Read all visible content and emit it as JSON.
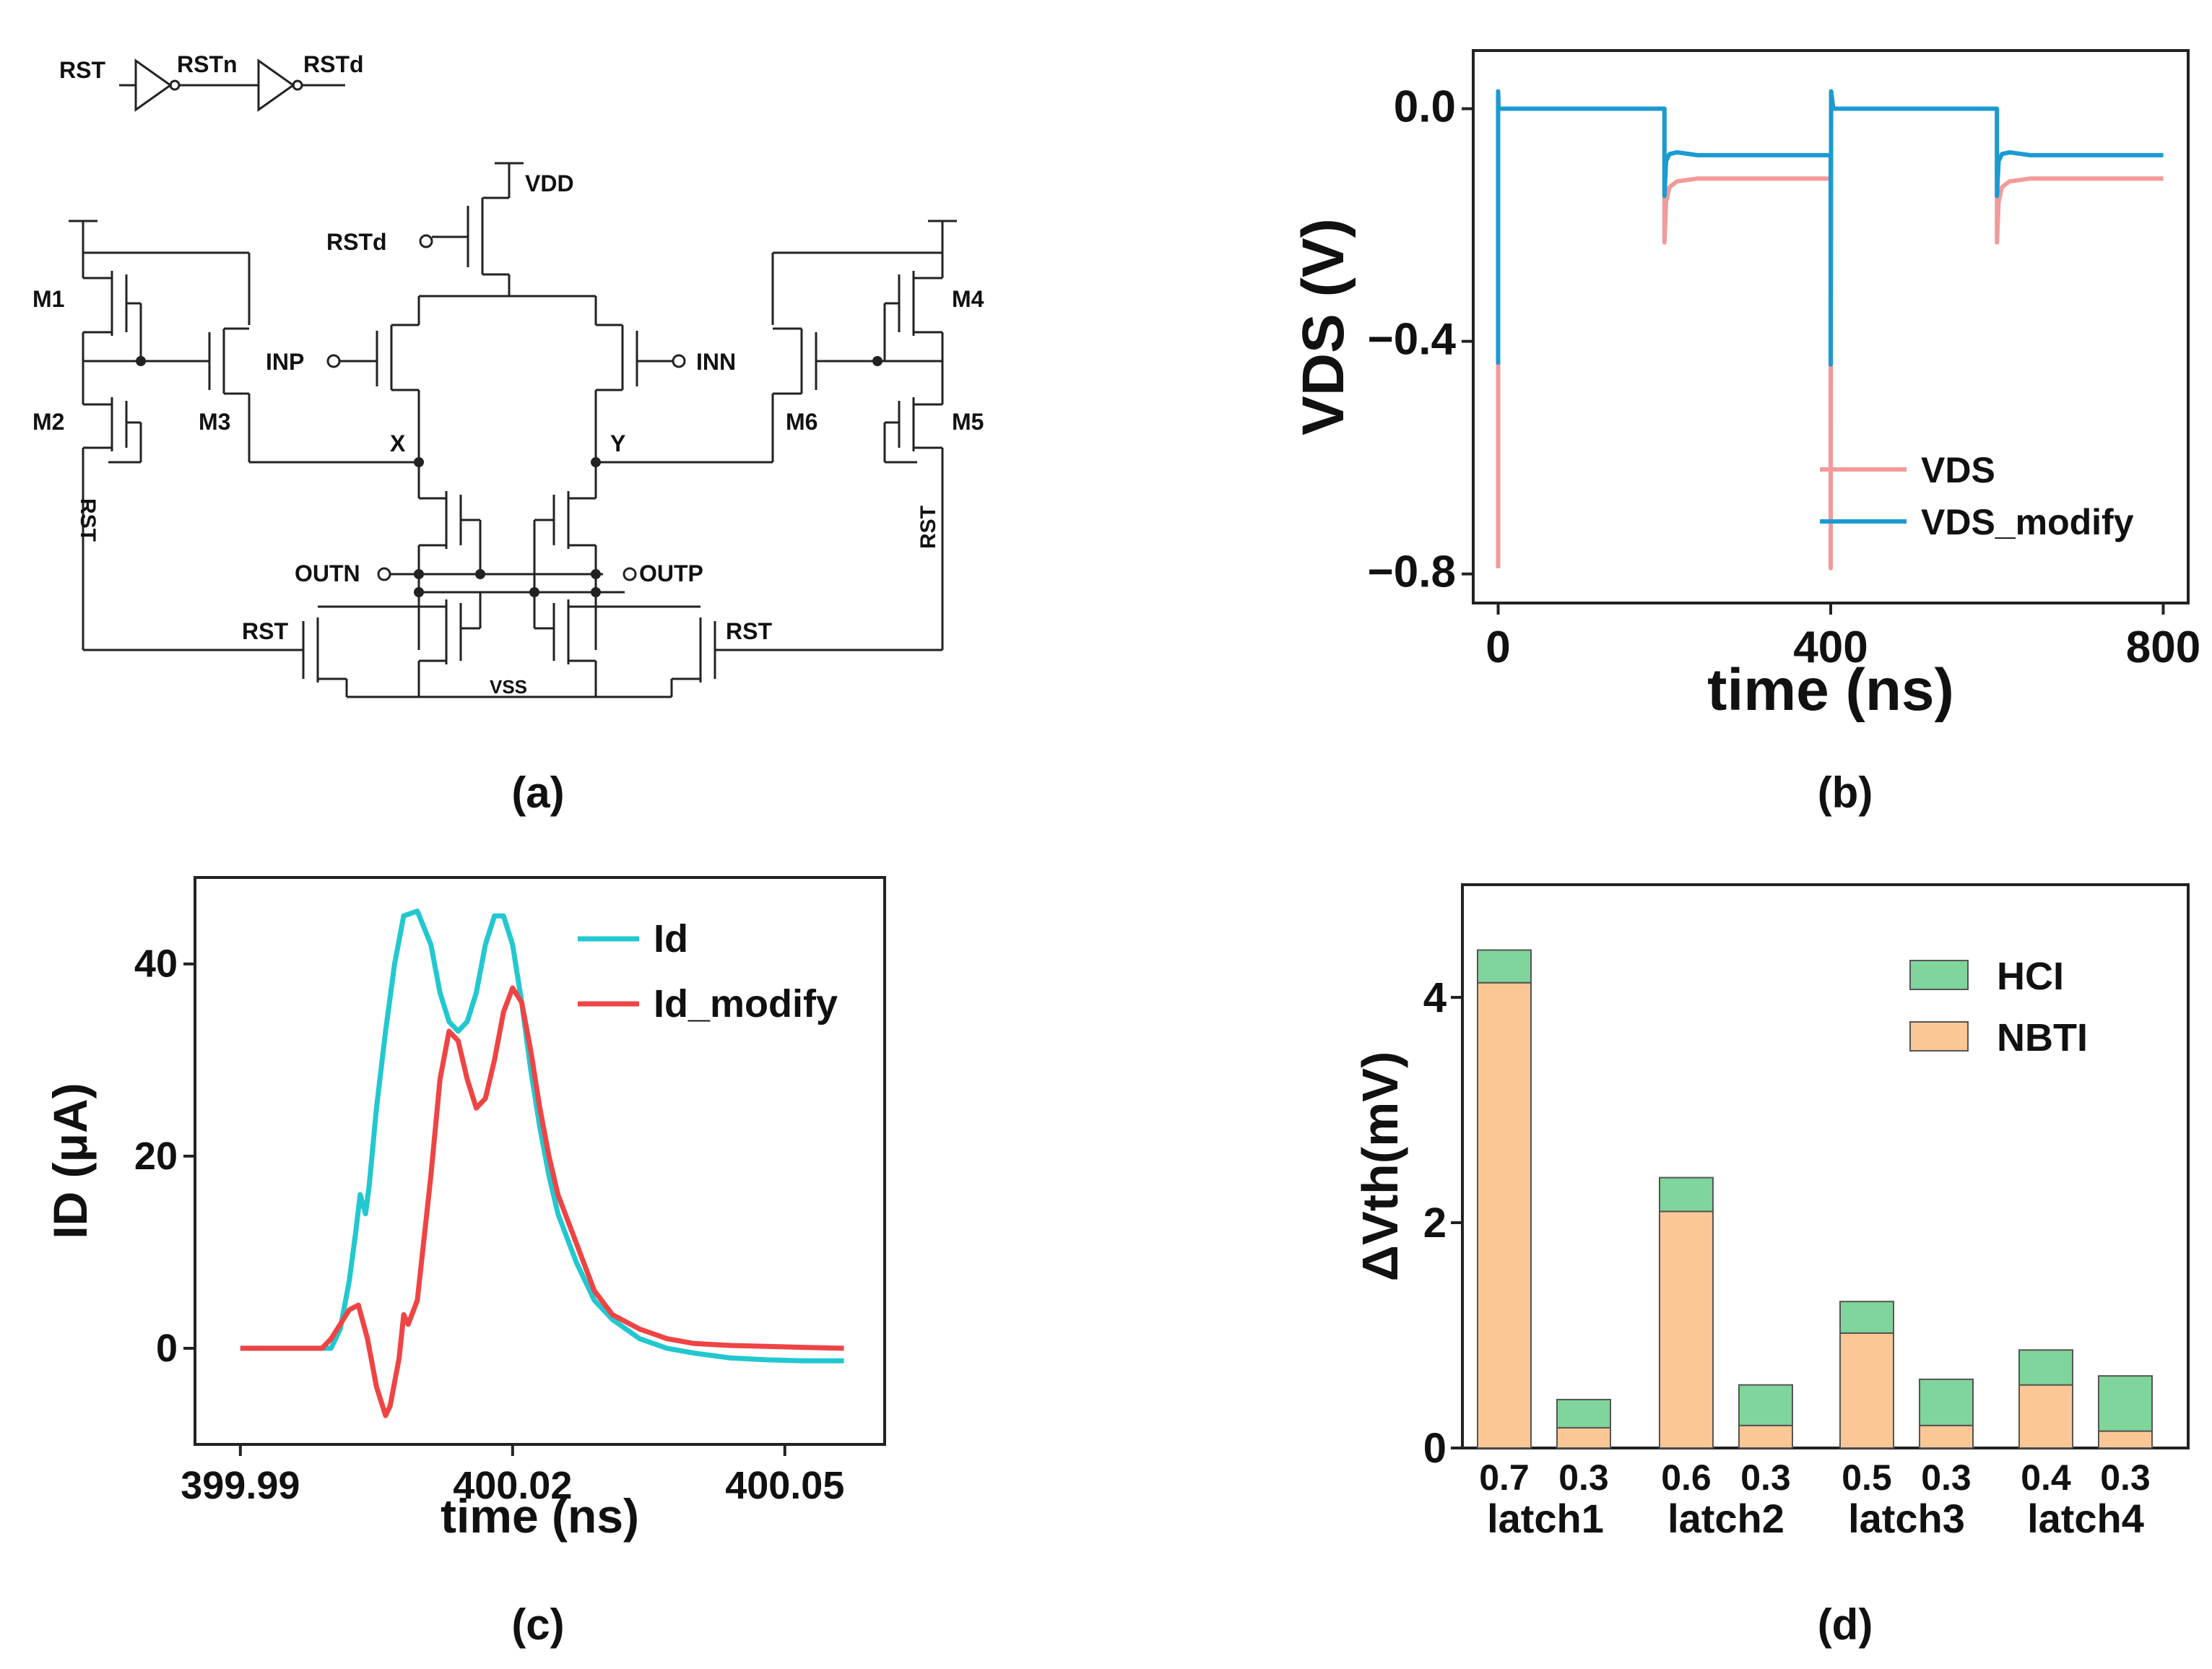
{
  "figure": {
    "panel_labels": [
      "(a)",
      "(b)",
      "(c)",
      "(d)"
    ]
  },
  "schematic": {
    "inverter_chain": [
      "RST",
      "RSTn",
      "RSTd"
    ],
    "labels": {
      "vdd": "VDD",
      "rstd": "RSTd",
      "inp": "INP",
      "inn": "INN",
      "x": "X",
      "y": "Y",
      "outn": "OUTN",
      "outp": "OUTP",
      "vss": "VSS",
      "rst_left_h": "RST",
      "rst_right_h": "RST",
      "rst_left_v": "RST",
      "rst_right_v": "RST",
      "m1": "M1",
      "m2": "M2",
      "m3": "M3",
      "m4": "M4",
      "m5": "M5",
      "m6": "M6"
    }
  },
  "chart_data": [
    {
      "type": "line",
      "title": "",
      "xlabel": "time (ns)",
      "ylabel": "VDS (V)",
      "xlim": [
        -30,
        830
      ],
      "ylim": [
        -0.85,
        0.1
      ],
      "xticks": [
        0,
        400,
        800
      ],
      "xtick_labels": [
        "0",
        "400",
        "800"
      ],
      "yticks": [
        0.0,
        -0.4,
        -0.8
      ],
      "ytick_labels": [
        "0.0",
        "−0.4",
        "−0.8"
      ],
      "legend_position": "lower-right",
      "series": [
        {
          "name": "VDS",
          "color": "#f39a9a",
          "x": [
            0,
            0,
            0.5,
            3,
            199,
            200,
            200,
            202,
            206,
            215,
            240,
            399,
            400,
            400,
            400.5,
            403,
            599,
            600,
            600,
            602,
            606,
            615,
            640,
            800
          ],
          "y": [
            -0.79,
            0.03,
            0.0,
            0.0,
            0.0,
            0.0,
            -0.23,
            -0.16,
            -0.135,
            -0.125,
            -0.12,
            -0.12,
            -0.12,
            -0.79,
            0.03,
            0.0,
            0.0,
            0.0,
            -0.23,
            -0.16,
            -0.135,
            -0.125,
            -0.12,
            -0.12
          ]
        },
        {
          "name": "VDS_modify",
          "color": "#1b9ad2",
          "x": [
            0,
            0,
            0.5,
            3,
            199,
            200,
            200,
            202,
            206,
            215,
            240,
            399,
            400,
            400,
            400.5,
            403,
            599,
            600,
            600,
            602,
            606,
            615,
            640,
            800
          ],
          "y": [
            -0.44,
            0.03,
            0.0,
            0.0,
            0.0,
            0.0,
            -0.15,
            -0.09,
            -0.078,
            -0.075,
            -0.08,
            -0.08,
            -0.08,
            -0.44,
            0.03,
            0.0,
            0.0,
            0.0,
            -0.15,
            -0.09,
            -0.078,
            -0.075,
            -0.08,
            -0.08
          ]
        }
      ]
    },
    {
      "type": "line",
      "title": "",
      "xlabel": "time (ns)",
      "ylabel": "ID (μA)",
      "xlim": [
        399.985,
        400.061
      ],
      "ylim": [
        -10,
        49
      ],
      "xticks": [
        399.99,
        400.02,
        400.05
      ],
      "xtick_labels": [
        "399.99",
        "400.02",
        "400.05"
      ],
      "yticks": [
        0,
        20,
        40
      ],
      "ytick_labels": [
        "0",
        "20",
        "40"
      ],
      "legend_position": "top-right",
      "series": [
        {
          "name": "Id",
          "color": "#22c8cf",
          "x": [
            399.99,
            400.0,
            400.001,
            400.002,
            400.0027,
            400.0032,
            400.0038,
            400.0042,
            400.005,
            400.006,
            400.007,
            400.008,
            400.0095,
            400.011,
            400.012,
            400.013,
            400.014,
            400.015,
            400.016,
            400.017,
            400.018,
            400.019,
            400.02,
            400.021,
            400.022,
            400.023,
            400.024,
            400.025,
            400.027,
            400.029,
            400.031,
            400.034,
            400.037,
            400.04,
            400.044,
            400.048,
            400.052,
            400.0565
          ],
          "y": [
            0,
            0,
            2,
            7,
            12,
            16,
            14,
            17,
            25,
            33,
            40,
            45,
            45.5,
            42,
            37,
            34,
            33,
            34,
            37,
            42,
            45,
            45,
            42,
            36,
            29,
            23,
            18,
            14,
            9,
            5,
            3,
            1,
            0,
            -0.5,
            -1,
            -1.2,
            -1.3,
            -1.3
          ]
        },
        {
          "name": "Id_modify",
          "color": "#ef4444",
          "x": [
            399.99,
            399.999,
            400.0,
            400.001,
            400.002,
            400.003,
            400.004,
            400.005,
            400.006,
            400.0065,
            400.0075,
            400.008,
            400.0085,
            400.0095,
            400.011,
            400.012,
            400.013,
            400.014,
            400.015,
            400.016,
            400.017,
            400.018,
            400.019,
            400.02,
            400.021,
            400.022,
            400.023,
            400.024,
            400.025,
            400.027,
            400.029,
            400.031,
            400.034,
            400.037,
            400.04,
            400.044,
            400.048,
            400.052,
            400.0565
          ],
          "y": [
            0,
            0,
            1,
            2.5,
            4,
            4.5,
            1,
            -4,
            -7,
            -6,
            -1,
            3.5,
            2.5,
            5,
            18,
            28,
            33,
            32,
            28,
            25,
            26,
            30,
            35,
            37.5,
            36,
            31,
            25,
            20,
            16,
            11,
            6,
            3.5,
            2,
            1,
            0.5,
            0.3,
            0.2,
            0.1,
            0
          ]
        }
      ]
    },
    {
      "type": "bar",
      "stacked": true,
      "title": "",
      "xlabel": "",
      "ylabel": "ΔVth(mV)",
      "ylim": [
        0,
        5
      ],
      "yticks": [
        0,
        2,
        4
      ],
      "ytick_labels": [
        "0",
        "2",
        "4"
      ],
      "legend_position": "top-right",
      "groups": [
        "latch1",
        "latch2",
        "latch3",
        "latch4"
      ],
      "categories": [
        "0.7",
        "0.3",
        "0.6",
        "0.3",
        "0.5",
        "0.3",
        "0.4",
        "0.3"
      ],
      "series": [
        {
          "name": "NBTI",
          "color": "#fbc794",
          "values": [
            4.13,
            0.18,
            2.1,
            0.2,
            1.02,
            0.2,
            0.56,
            0.15
          ]
        },
        {
          "name": "HCI",
          "color": "#7fd59b",
          "values": [
            0.29,
            0.25,
            0.3,
            0.36,
            0.28,
            0.41,
            0.31,
            0.49
          ]
        }
      ]
    }
  ]
}
